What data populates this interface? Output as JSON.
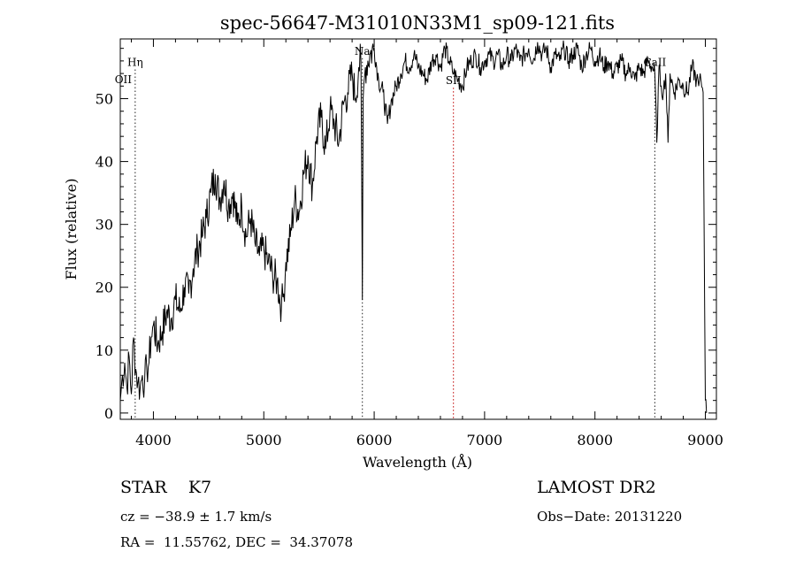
{
  "chart_data": {
    "type": "line",
    "title": "spec-56647-M31010N33M1_sp09-121.fits",
    "xlabel": "Wavelength (Å)",
    "ylabel": "Flux (relative)",
    "xlim": [
      3700,
      9100
    ],
    "ylim": [
      -1,
      59.5
    ],
    "xticks": [
      4000,
      5000,
      6000,
      7000,
      8000,
      9000
    ],
    "yticks": [
      0,
      10,
      20,
      30,
      40,
      50
    ],
    "grid": false,
    "series": [
      {
        "x": [
          3700,
          3720,
          3740,
          3760,
          3780,
          3800,
          3820,
          3840,
          3860,
          3880,
          3900,
          3920,
          3940,
          3960,
          3980,
          4000,
          4040,
          4080,
          4120,
          4160,
          4200,
          4240,
          4280,
          4320,
          4360,
          4400,
          4440,
          4480,
          4520,
          4560,
          4600,
          4640,
          4680,
          4720,
          4760,
          4800,
          4840,
          4880,
          4920,
          4960,
          5000,
          5040,
          5080,
          5120,
          5160,
          5180,
          5200,
          5240,
          5280,
          5320,
          5360,
          5400,
          5440,
          5480,
          5520,
          5560,
          5600,
          5640,
          5680,
          5720,
          5760,
          5800,
          5830,
          5860,
          5880,
          5893,
          5900,
          5920,
          5960,
          6000,
          6040,
          6080,
          6120,
          6160,
          6200,
          6240,
          6280,
          6320,
          6360,
          6400,
          6440,
          6480,
          6520,
          6560,
          6600,
          6640,
          6680,
          6720,
          6760,
          6800,
          6840,
          6880,
          6920,
          6960,
          7000,
          7040,
          7080,
          7120,
          7160,
          7200,
          7240,
          7280,
          7320,
          7360,
          7400,
          7440,
          7480,
          7520,
          7560,
          7600,
          7640,
          7680,
          7720,
          7760,
          7800,
          7840,
          7880,
          7920,
          7960,
          8000,
          8040,
          8080,
          8120,
          8160,
          8200,
          8240,
          8280,
          8320,
          8360,
          8400,
          8440,
          8480,
          8520,
          8542,
          8560,
          8580,
          8600,
          8620,
          8640,
          8662,
          8680,
          8720,
          8760,
          8800,
          8840,
          8880,
          8920,
          8940,
          8960,
          8980,
          9000,
          9010
        ],
        "y": [
          2,
          6,
          8,
          4,
          9,
          3,
          12,
          7,
          5,
          4,
          6,
          5,
          7,
          8,
          12,
          14,
          11,
          13,
          16,
          15,
          18,
          16,
          20,
          19,
          23,
          26,
          28,
          31,
          35,
          38,
          34,
          37,
          33,
          35,
          30,
          33,
          28,
          31,
          27,
          25,
          26,
          24,
          22,
          21,
          17,
          19,
          24,
          28,
          34,
          32,
          38,
          41,
          36,
          44,
          47,
          42,
          48,
          46,
          43,
          49,
          51,
          54,
          50,
          55,
          56,
          18,
          50,
          55,
          57,
          58,
          53,
          51,
          46,
          50,
          52,
          54,
          56,
          55,
          57,
          55,
          54,
          53,
          56,
          57,
          55,
          58,
          56,
          54,
          53,
          52,
          55,
          56,
          57,
          55,
          56,
          57,
          56,
          57,
          55,
          57,
          56,
          58,
          56,
          57,
          58,
          56,
          59,
          57,
          58,
          55,
          57,
          56,
          58,
          56,
          57,
          58,
          55,
          57,
          58,
          56,
          57,
          55,
          56,
          54,
          55,
          56,
          54,
          55,
          53,
          55,
          54,
          56,
          55,
          54,
          43,
          55,
          52,
          51,
          54,
          43,
          54,
          51,
          53,
          52,
          51,
          55,
          53,
          52,
          53,
          51,
          2,
          0
        ]
      }
    ],
    "lines": [
      {
        "label": "OII",
        "x": 3727,
        "y_label": 52.5
      },
      {
        "label": "Hη",
        "x": 3835,
        "y_label": 55.2
      },
      {
        "label": "Na",
        "x": 5893,
        "y_label": 57.0
      },
      {
        "label": "SII",
        "x": 6718,
        "y_label": 52.3
      },
      {
        "label": "CaII",
        "x": 8542,
        "y_label": 55.2
      }
    ],
    "marker_style": {
      "Na": "#202020",
      "SII": "#c00000",
      "CaII": "#202020",
      "Hη": "#202020"
    }
  },
  "info": {
    "class_label": "STAR",
    "subclass": "K7",
    "cz": "cz = −38.9 ± 1.7 km/s",
    "coords": "RA =  11.55762, DEC =  34.37078",
    "survey": "LAMOST DR2",
    "obs_date": "Obs−Date: 20131220"
  }
}
